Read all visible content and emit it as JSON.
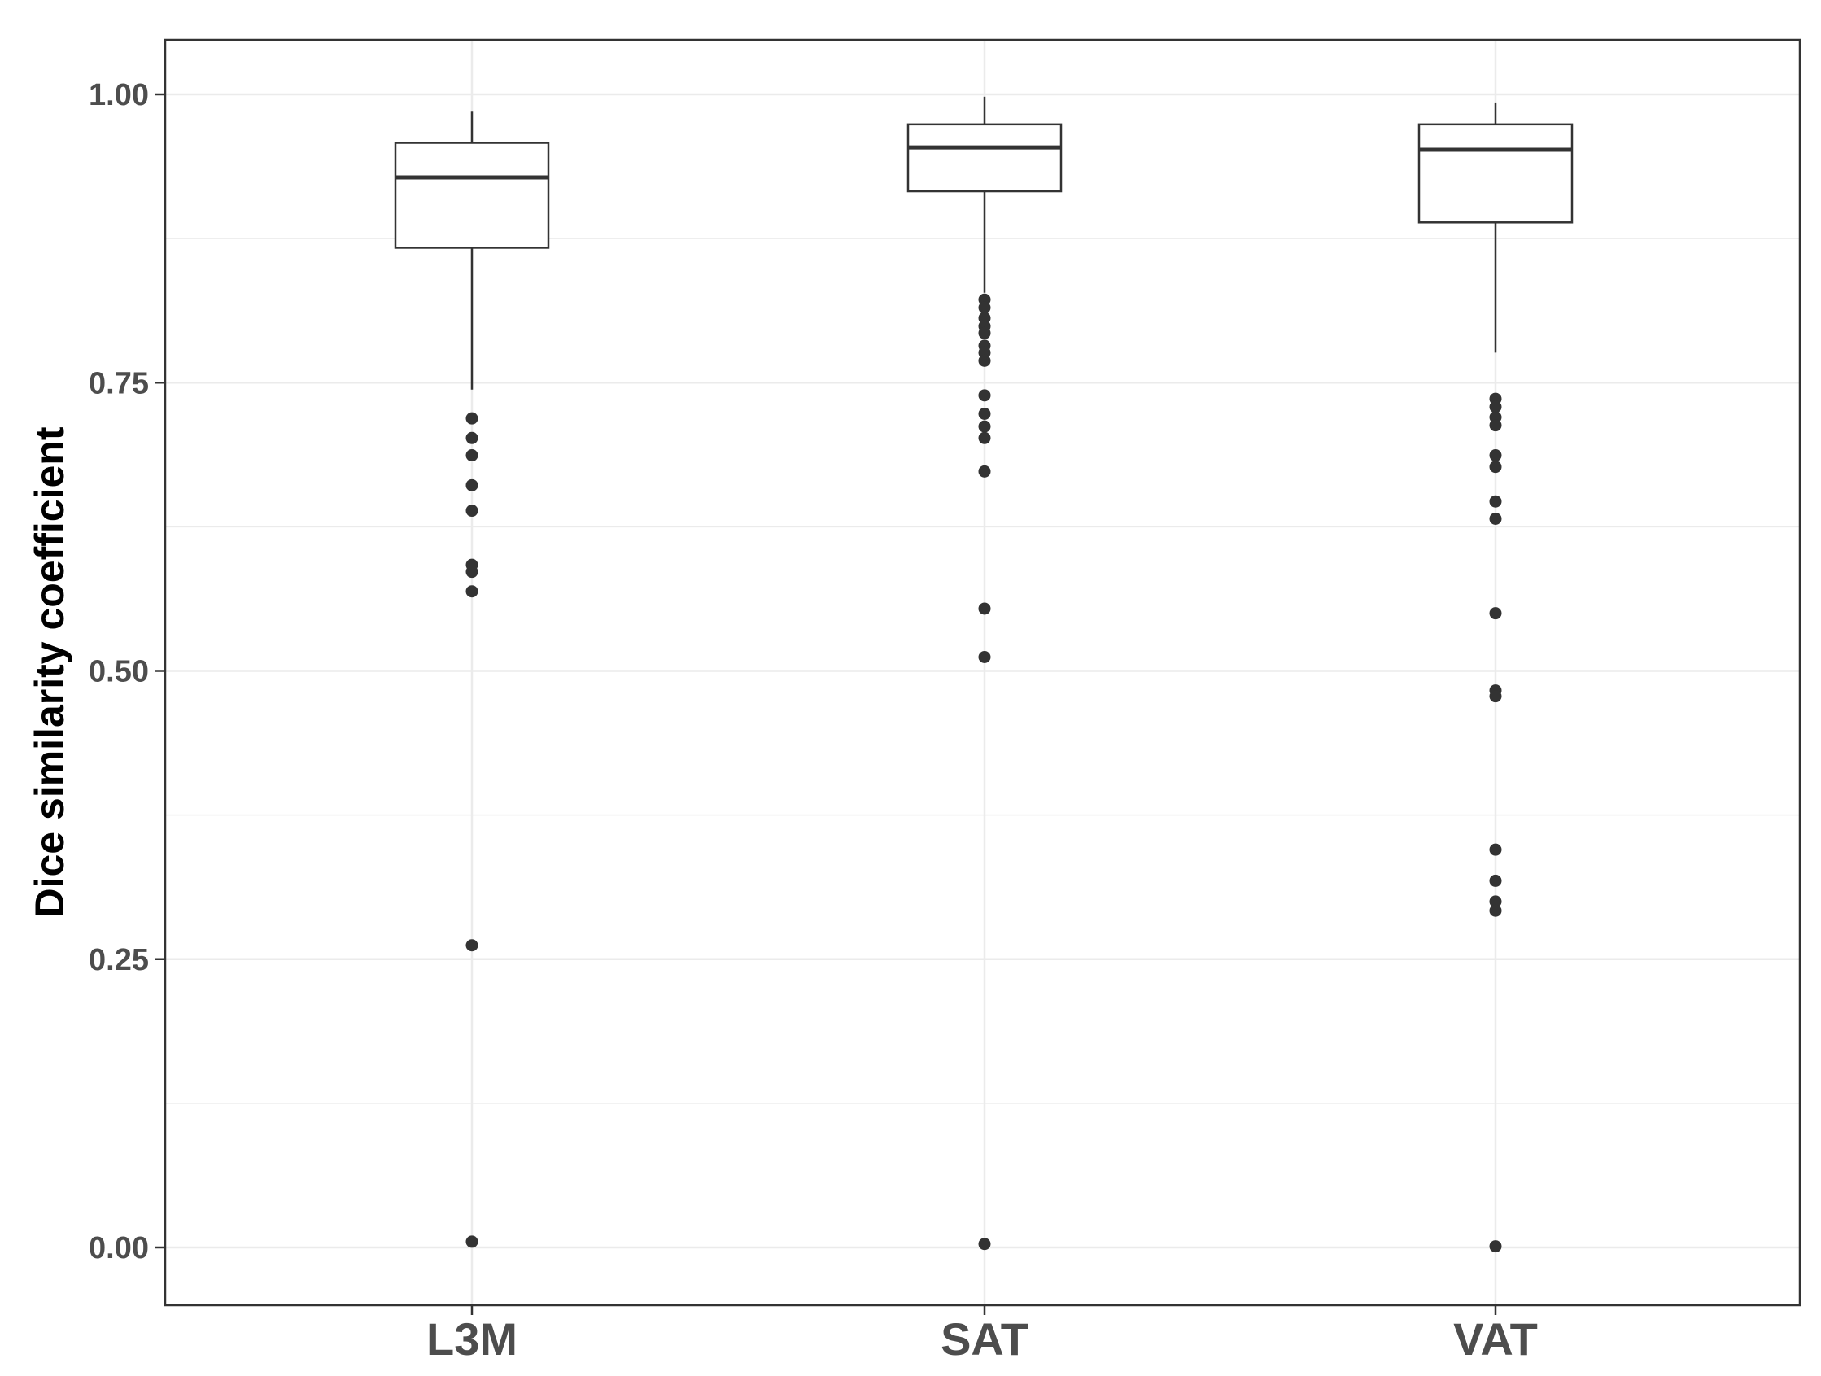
{
  "chart_data": {
    "type": "box",
    "xlabel": "",
    "ylabel": "Dice similarity coefficient",
    "ylim": [
      -0.055,
      1.048
    ],
    "yticks": [
      0.0,
      0.25,
      0.5,
      0.75,
      1.0
    ],
    "ytick_labels": [
      "0.00",
      "0.25",
      "0.50",
      "0.75",
      "1.00"
    ],
    "minor_grid": [
      0.125,
      0.375,
      0.625,
      0.875
    ],
    "grid": true,
    "categories": [
      "L3M",
      "SAT",
      "VAT"
    ],
    "boxes": [
      {
        "category": "L3M",
        "whisker_low": 0.744,
        "q1": 0.867,
        "median": 0.928,
        "q3": 0.958,
        "whisker_high": 0.985,
        "outliers": [
          0.719,
          0.702,
          0.687,
          0.661,
          0.639,
          0.592,
          0.586,
          0.569,
          0.262,
          0.005
        ]
      },
      {
        "category": "SAT",
        "whisker_low": 0.828,
        "q1": 0.916,
        "median": 0.954,
        "q3": 0.974,
        "whisker_high": 0.998,
        "outliers": [
          0.822,
          0.815,
          0.806,
          0.799,
          0.793,
          0.782,
          0.776,
          0.769,
          0.739,
          0.723,
          0.712,
          0.702,
          0.673,
          0.554,
          0.512,
          0.003
        ]
      },
      {
        "category": "VAT",
        "whisker_low": 0.776,
        "q1": 0.889,
        "median": 0.952,
        "q3": 0.974,
        "whisker_high": 0.993,
        "outliers": [
          0.736,
          0.729,
          0.72,
          0.713,
          0.687,
          0.677,
          0.647,
          0.632,
          0.55,
          0.483,
          0.478,
          0.345,
          0.318,
          0.3,
          0.292,
          0.001
        ]
      }
    ],
    "colors": {
      "box_stroke": "#333333",
      "point": "#333333",
      "grid": "#ebebeb",
      "panel_border": "#333333",
      "tick_text": "#4d4d4d",
      "title_text": "#000000"
    }
  }
}
